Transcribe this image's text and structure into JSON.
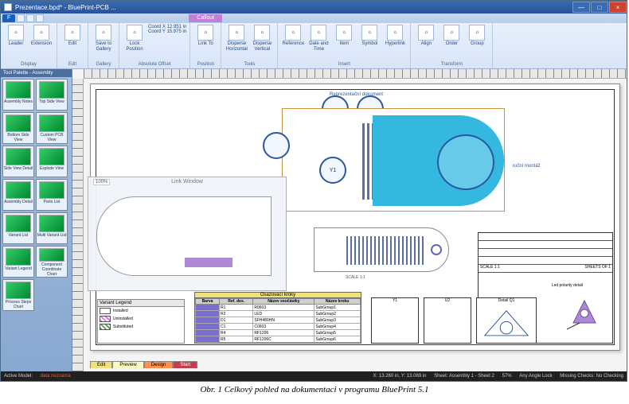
{
  "window": {
    "title": "Prezentace.bpd* - BluePrint-PCB ...",
    "sys": {
      "min": "—",
      "max": "□",
      "close": "×"
    }
  },
  "qat": {
    "file_tab": "F",
    "context_tab": "Callout"
  },
  "ribbon": {
    "groups": [
      {
        "label": "Display",
        "buttons": [
          {
            "label": "Leader"
          },
          {
            "label": "Extension"
          }
        ]
      },
      {
        "label": "Edit",
        "buttons": [
          {
            "label": "Edit"
          }
        ]
      },
      {
        "label": "Gallery",
        "buttons": [
          {
            "label": "Save to Gallery"
          }
        ]
      },
      {
        "label": "Absolute Offset",
        "buttons": [
          {
            "label": "Lock Position"
          }
        ],
        "coords": {
          "x_label": "Coord X",
          "x_val": "12.951 in",
          "y_label": "Coord Y",
          "y_val": "15.975 in"
        }
      },
      {
        "label": "Position",
        "buttons": [
          {
            "label": "Link To"
          }
        ]
      },
      {
        "label": "Tools",
        "buttons": [
          {
            "label": "Disperse Horizontal"
          },
          {
            "label": "Disperse Vertical"
          }
        ]
      },
      {
        "label": "Insert",
        "buttons": [
          {
            "label": "Reference"
          },
          {
            "label": "Date and Time"
          },
          {
            "label": "Item"
          },
          {
            "label": "Symbol"
          },
          {
            "label": "Hyperlink"
          }
        ]
      },
      {
        "label": "Transform",
        "buttons": [
          {
            "label": "Align"
          },
          {
            "label": "Order"
          },
          {
            "label": "Group"
          }
        ]
      }
    ]
  },
  "palette": {
    "title": "Tool Palette - Assembly",
    "items": [
      "Assembly Notes",
      "Top Side View",
      "Bottom Side View",
      "Custom PCB View",
      "Side View Detail",
      "Explode View",
      "Assembly Detail",
      "Parts List",
      "Variant List",
      "Multi Variant List",
      "Variant Legend",
      "Component Coordinate Chart",
      "Process Steps Chart"
    ],
    "vtabs": [
      "General",
      "Fabrication",
      "Assembly",
      "Panel",
      "Custom",
      "Gallery"
    ]
  },
  "link_window": {
    "title": "Link Window",
    "zoom": "100%"
  },
  "page": {
    "top_note": "Reprezentační dokument",
    "y1_label": "Y1",
    "ruční_note": "ruční montáž",
    "scale_note": "SCALE 1:1",
    "sheets_note": "SHEETS OF 1"
  },
  "variant_legend": {
    "title": "Variant Legend",
    "rows": [
      {
        "label": "Installed",
        "class": "inst"
      },
      {
        "label": "Uninstalled",
        "class": "uninst"
      },
      {
        "label": "Substituted",
        "class": "subs"
      }
    ]
  },
  "step_table": {
    "title": "Osazovací kroky",
    "headers": [
      "Barva",
      "Ref. des.",
      "Název součástky",
      "Název kroku"
    ],
    "rows": [
      [
        "",
        "R1",
        "R0603",
        "SubGroup1"
      ],
      [
        "",
        "R2",
        "LED",
        "SubGroup2"
      ],
      [
        "",
        "D1",
        "SFH480HN",
        "SubGroup3"
      ],
      [
        "",
        "C1",
        "C0603",
        "SubGroup4"
      ],
      [
        "",
        "R4",
        "RF1206",
        "SubGroup5"
      ],
      [
        "",
        "R5",
        "RF1206C",
        "SubGroup6"
      ]
    ],
    "color": "#7a6fd0"
  },
  "details": {
    "y1": "Y1",
    "u2": "U2",
    "q1": "Detail Q1",
    "led": "Led polarity detail"
  },
  "sheet_tabs": [
    "Edit",
    "Preview",
    "Design",
    "Start"
  ],
  "statusbar": {
    "left_mode": "Active Model:",
    "left_warn": "data neznámá",
    "coords": "X: 13.260 in, Y: 13.069 in",
    "sheet": "Sheet: Assembly 1 - Sheet 2",
    "pct": "57%",
    "angle": "Any Angle Lock",
    "check": "Missing Checks: No Checking"
  },
  "caption": "Obr. 1  Celkový pohled na dokumentaci v programu BluePrint 5.1",
  "colors": {
    "ribbon_bg": "#e8f0fc",
    "accent": "#2a5fbf",
    "pcb_blue": "#35b8e0",
    "callout_border": "#c89040",
    "purple": "#b088d8",
    "table_color": "#7a6fd0"
  }
}
